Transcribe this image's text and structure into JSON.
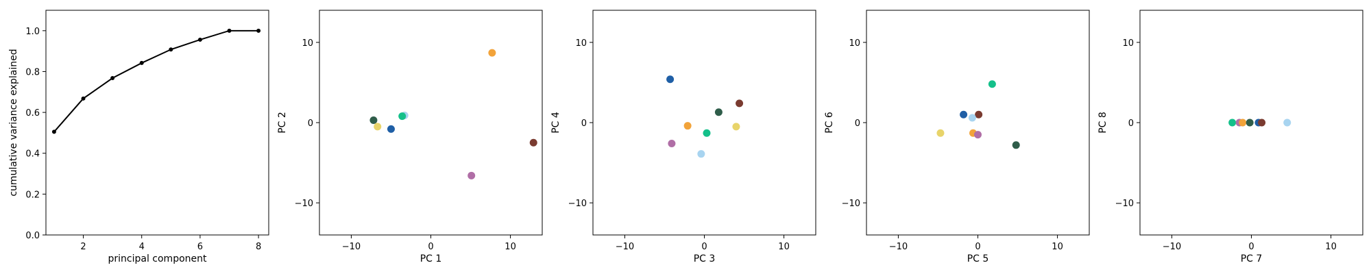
{
  "chart_data": [
    {
      "type": "line",
      "xlabel": "principal component",
      "ylabel": "cumulative variance explained",
      "xlim": [
        0.72,
        8.35
      ],
      "ylim": [
        0.0,
        1.1
      ],
      "xticks": [
        2,
        4,
        6,
        8
      ],
      "yticks": [
        0.0,
        0.2,
        0.4,
        0.6,
        0.8,
        1.0
      ],
      "grid": false,
      "color": "#000000",
      "series": [
        {
          "x": [
            1,
            2,
            3,
            4,
            5,
            6,
            7,
            8
          ],
          "values": [
            0.505,
            0.668,
            0.768,
            0.842,
            0.908,
            0.956,
            1.0,
            1.0
          ]
        }
      ]
    },
    {
      "type": "scatter",
      "xlabel": "PC 1",
      "ylabel": "PC 2",
      "xlim": [
        -14,
        14
      ],
      "ylim": [
        -14,
        14
      ],
      "xticks": [
        -10,
        0,
        10
      ],
      "yticks": [
        -10,
        0,
        10
      ],
      "grid": false,
      "points": [
        {
          "x": -7.2,
          "y": 0.3,
          "color": "#2f5d4a"
        },
        {
          "x": -6.7,
          "y": -0.5,
          "color": "#e8d46a"
        },
        {
          "x": -5.0,
          "y": -0.8,
          "color": "#1f5fa6"
        },
        {
          "x": -3.3,
          "y": 0.9,
          "color": "#a8d4f0"
        },
        {
          "x": -3.6,
          "y": 0.8,
          "color": "#14c08a"
        },
        {
          "x": 7.7,
          "y": 8.7,
          "color": "#f2a33a"
        },
        {
          "x": 12.9,
          "y": -2.5,
          "color": "#7a3b30"
        },
        {
          "x": 5.1,
          "y": -6.6,
          "color": "#b06ea6"
        }
      ]
    },
    {
      "type": "scatter",
      "xlabel": "PC 3",
      "ylabel": "PC 4",
      "xlim": [
        -14,
        14
      ],
      "ylim": [
        -14,
        14
      ],
      "xticks": [
        -10,
        0,
        10
      ],
      "yticks": [
        -10,
        0,
        10
      ],
      "grid": false,
      "points": [
        {
          "x": -4.3,
          "y": 5.4,
          "color": "#1f5fa6"
        },
        {
          "x": 1.8,
          "y": 1.3,
          "color": "#2f5d4a"
        },
        {
          "x": 4.4,
          "y": 2.4,
          "color": "#7a3b30"
        },
        {
          "x": -2.1,
          "y": -0.4,
          "color": "#f2a33a"
        },
        {
          "x": 0.3,
          "y": -1.3,
          "color": "#14c08a"
        },
        {
          "x": 4.0,
          "y": -0.5,
          "color": "#e8d46a"
        },
        {
          "x": -4.1,
          "y": -2.6,
          "color": "#b06ea6"
        },
        {
          "x": -0.4,
          "y": -3.9,
          "color": "#a8d4f0"
        }
      ]
    },
    {
      "type": "scatter",
      "xlabel": "PC 5",
      "ylabel": "PC 6",
      "xlim": [
        -14,
        14
      ],
      "ylim": [
        -14,
        14
      ],
      "xticks": [
        -10,
        0,
        10
      ],
      "yticks": [
        -10,
        0,
        10
      ],
      "grid": false,
      "points": [
        {
          "x": 1.8,
          "y": 4.8,
          "color": "#14c08a"
        },
        {
          "x": -1.8,
          "y": 1.0,
          "color": "#1f5fa6"
        },
        {
          "x": 0.1,
          "y": 1.0,
          "color": "#7a3b30"
        },
        {
          "x": -0.7,
          "y": 0.6,
          "color": "#a8d4f0"
        },
        {
          "x": -4.7,
          "y": -1.3,
          "color": "#e8d46a"
        },
        {
          "x": -0.6,
          "y": -1.3,
          "color": "#f2a33a"
        },
        {
          "x": 0.0,
          "y": -1.5,
          "color": "#b06ea6"
        },
        {
          "x": 4.8,
          "y": -2.8,
          "color": "#2f5d4a"
        }
      ]
    },
    {
      "type": "scatter",
      "xlabel": "PC 7",
      "ylabel": "PC 8",
      "xlim": [
        -14,
        14
      ],
      "ylim": [
        -14,
        14
      ],
      "xticks": [
        -10,
        0,
        10
      ],
      "yticks": [
        -10,
        0,
        10
      ],
      "grid": false,
      "points": [
        {
          "x": -2.4,
          "y": 0.0,
          "color": "#14c08a"
        },
        {
          "x": -1.5,
          "y": 0.0,
          "color": "#b06ea6"
        },
        {
          "x": -1.1,
          "y": 0.0,
          "color": "#f2a33a"
        },
        {
          "x": -0.2,
          "y": 0.0,
          "color": "#2f5d4a"
        },
        {
          "x": 0.9,
          "y": 0.0,
          "color": "#1f5fa6"
        },
        {
          "x": 1.3,
          "y": 0.0,
          "color": "#7a3b30"
        },
        {
          "x": 4.5,
          "y": 0.0,
          "color": "#a8d4f0"
        }
      ]
    }
  ]
}
